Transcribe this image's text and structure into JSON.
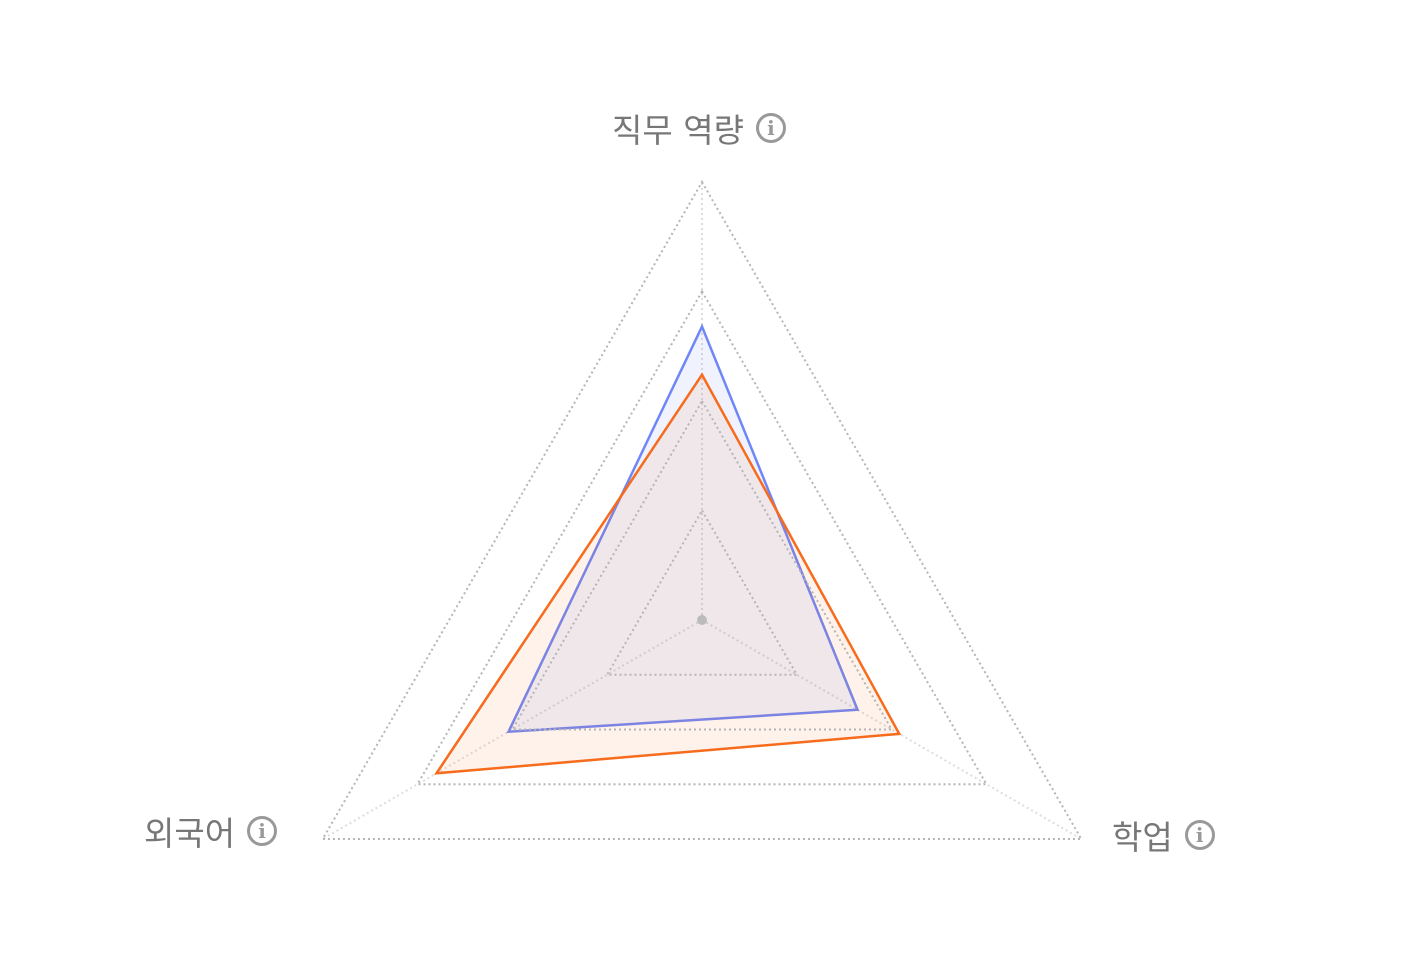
{
  "chart_data": {
    "type": "radar",
    "axes": [
      "직무 역량",
      "학업",
      "외국어"
    ],
    "info_icon": "info-circle-icon",
    "range": [
      0,
      100
    ],
    "grid_levels": [
      25,
      50,
      75,
      100
    ],
    "grid": true,
    "series": [
      {
        "values": [
          67,
          41,
          51
        ],
        "color": "#6f86f7",
        "fill": "rgba(111,134,247,0.1)"
      },
      {
        "values": [
          56,
          52,
          70
        ],
        "color": "#f76b1c",
        "fill": "rgba(247,107,28,0.09)"
      }
    ]
  }
}
